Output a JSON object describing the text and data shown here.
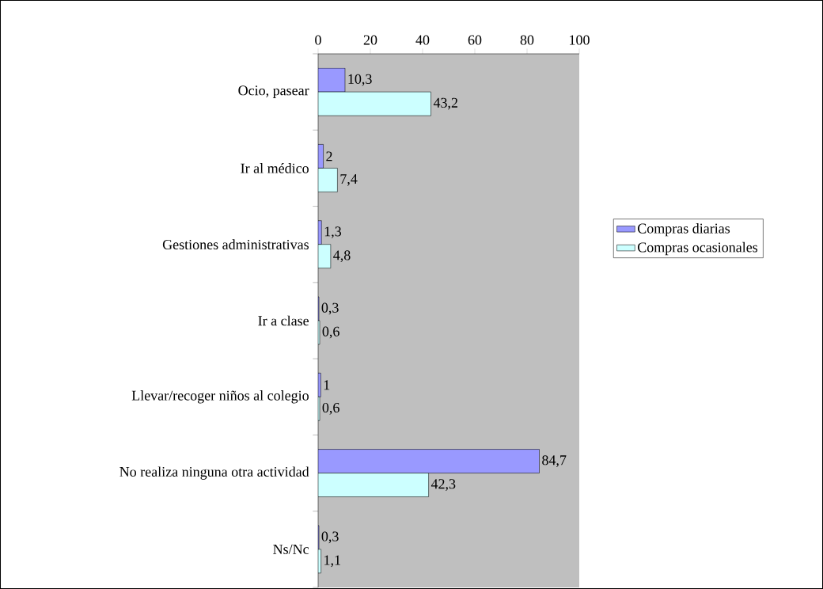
{
  "chart_data": {
    "type": "bar",
    "orientation": "horizontal",
    "categories": [
      "Ocio, pasear",
      "Ir al médico",
      "Gestiones administrativas",
      "Ir a clase",
      "Llevar/recoger niños al colegio",
      "No realiza ninguna otra actividad",
      "Ns/Nc"
    ],
    "series": [
      {
        "name": "Compras diarias",
        "color": "#9999ff",
        "values": [
          10.3,
          2,
          1.3,
          0.3,
          1,
          84.7,
          0.3
        ],
        "value_labels": [
          "10,3",
          "2",
          "1,3",
          "0,3",
          "1",
          "84,7",
          "0,3"
        ]
      },
      {
        "name": "Compras ocasionales",
        "color": "#ccffff",
        "values": [
          43.2,
          7.4,
          4.8,
          0.6,
          0.6,
          42.3,
          1.1
        ],
        "value_labels": [
          "43,2",
          "7,4",
          "4,8",
          "0,6",
          "0,6",
          "42,3",
          "1,1"
        ]
      }
    ],
    "xlim": [
      0,
      100
    ],
    "xticks": [
      0,
      20,
      40,
      60,
      80,
      100
    ],
    "legend": "right",
    "grid": false
  }
}
